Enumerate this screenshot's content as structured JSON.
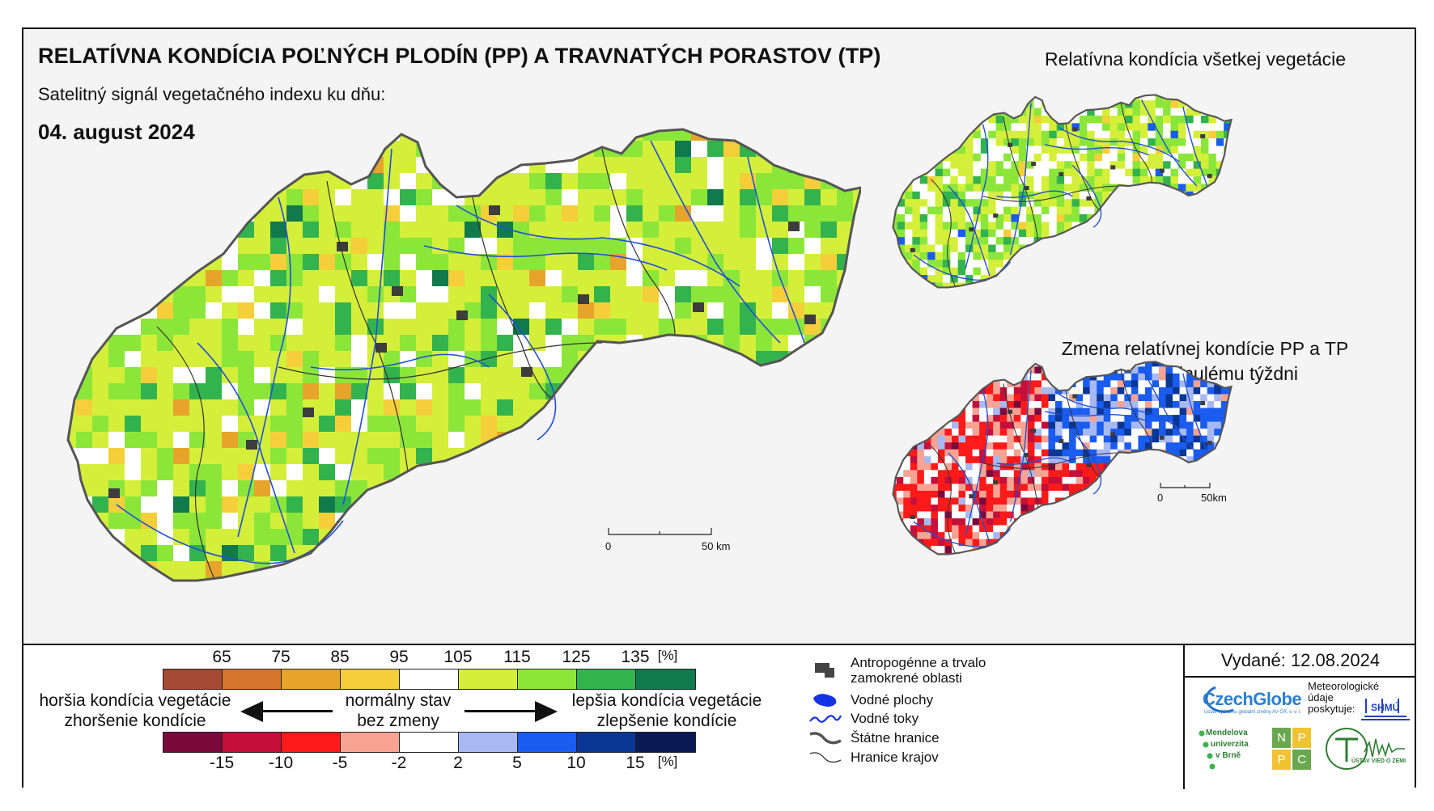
{
  "header": {
    "title": "RELATÍVNA KONDÍCIA POĽNÝCH PLODÍN (PP) A TRAVNATÝCH PORASTOV (TP)",
    "subtitle": "Satelitný signál vegetačného indexu ku dňu:",
    "date": "04. august 2024"
  },
  "maps": {
    "main": {
      "scale_start": "0",
      "scale_end": "50 km"
    },
    "all_vegetation": {
      "title": "Relatívna kondícia všetkej vegetácie"
    },
    "change": {
      "title_line1": "Zmena relatívnej kondície PP a TP",
      "title_line2": "oproti minulému týždni",
      "scale_start": "0",
      "scale_end": "50km"
    }
  },
  "legend": {
    "condition_ticks": [
      "65",
      "75",
      "85",
      "95",
      "105",
      "115",
      "125",
      "135",
      "[%]"
    ],
    "condition_colors": [
      "#a64a33",
      "#d6742e",
      "#e6a52a",
      "#f5cf3a",
      "#ffffff",
      "#d4ef3a",
      "#8ce63a",
      "#33b34d",
      "#117a4d"
    ],
    "change_ticks": [
      "-15",
      "-10",
      "-5",
      "-2",
      "2",
      "5",
      "10",
      "15",
      "[%]"
    ],
    "change_colors": [
      "#7a0a3c",
      "#c4103a",
      "#ff1a1a",
      "#f7a394",
      "#ffffff",
      "#a7b8f2",
      "#1a5cf0",
      "#0a3694",
      "#0a1a55"
    ],
    "worse_line1": "horšia kondícia vegetácie",
    "worse_line2": "zhoršenie kondície",
    "normal_line1": "normálny stav",
    "normal_line2": "bez zmeny",
    "better_line1": "lepšia kondícia vegetácie",
    "better_line2": "zlepšenie kondície"
  },
  "symbols": [
    {
      "icon": "urban-area-icon",
      "label_line1": "Antropogénne a trvalo",
      "label_line2": "zamokrené oblasti"
    },
    {
      "icon": "water-body-icon",
      "label_line1": "Vodné plochy"
    },
    {
      "icon": "river-icon",
      "label_line1": "Vodné toky"
    },
    {
      "icon": "state-border-icon",
      "label_line1": "Štátne hranice"
    },
    {
      "icon": "region-border-icon",
      "label_line1": "Hranice krajov"
    }
  ],
  "issue": {
    "issued": "Vydané: 12.08.2024"
  },
  "logos": {
    "czechglobe": "CzechGlobe",
    "czechglobe_sub": "Ústav výzkumu globální změny AV ČR, v. v. i.",
    "meteo_line1": "Meteorologické",
    "meteo_line2": "údaje",
    "meteo_line3": "poskytuje:",
    "shmu": "SHMÚ",
    "mendel_line1": "Mendelova",
    "mendel_line2": "univerzita",
    "mendel_line3": "v Brně",
    "nppc_n": "N",
    "nppc_p1": "P",
    "nppc_p2": "P",
    "nppc_c": "C",
    "uvz": "ÚSTAV VIED O ZEMI"
  }
}
